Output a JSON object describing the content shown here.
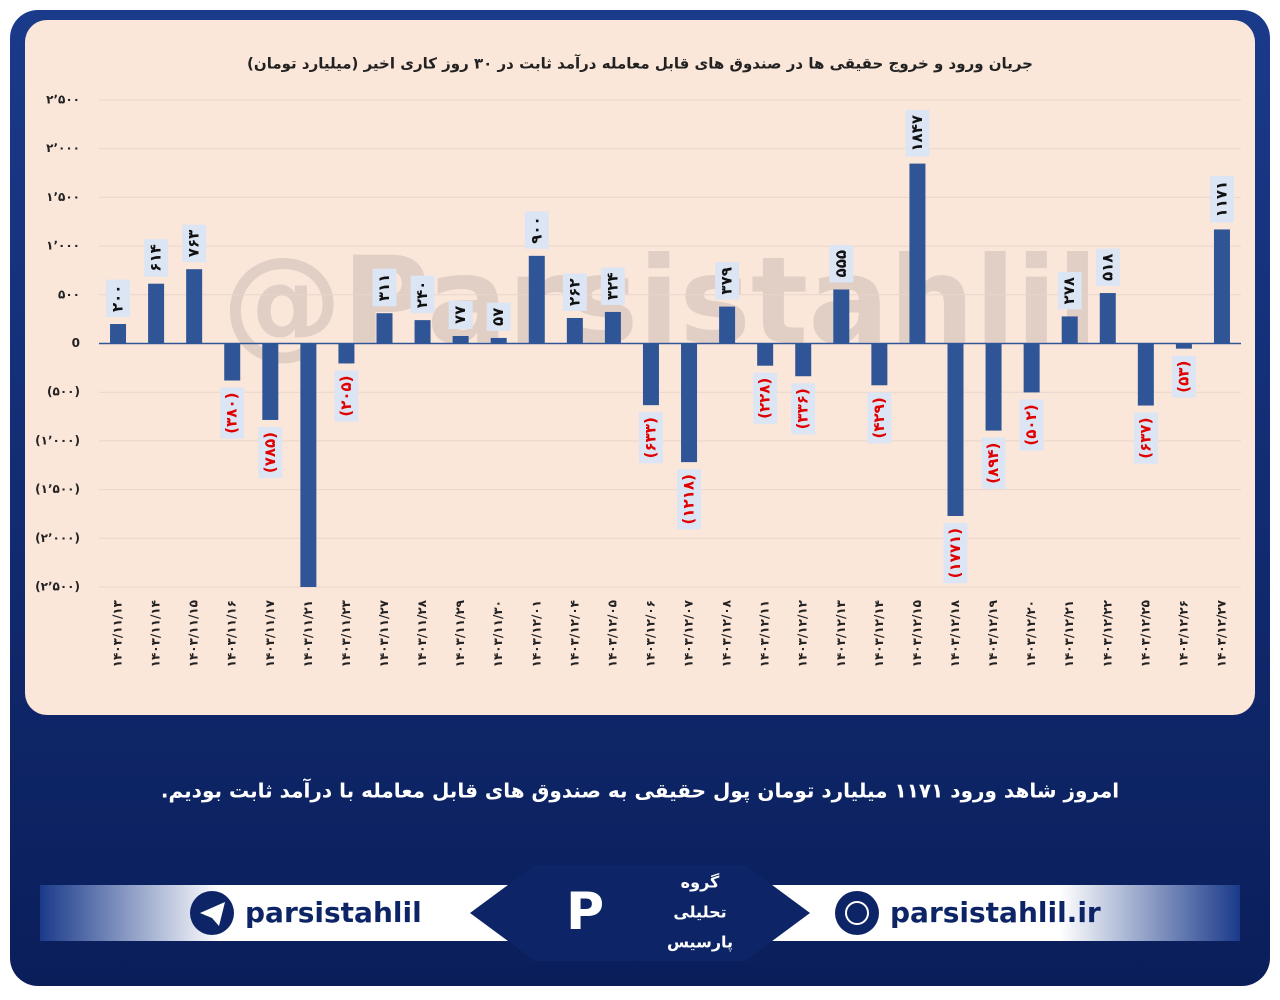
{
  "chart_data": {
    "type": "bar",
    "title": "جریان ورود و خروج حقیقی ها در صندوق های قابل معامله درآمد ثابت در ۳۰ روز کاری اخیر (میلیارد تومان)",
    "watermark": "@Parsistahlil",
    "categories": [
      "۱۴۰۳/۱۱/۱۳",
      "۱۴۰۳/۱۱/۱۴",
      "۱۴۰۳/۱۱/۱۵",
      "۱۴۰۳/۱۱/۱۶",
      "۱۴۰۳/۱۱/۱۷",
      "۱۴۰۳/۱۱/۲۱",
      "۱۴۰۳/۱۱/۲۳",
      "۱۴۰۳/۱۱/۲۷",
      "۱۴۰۳/۱۱/۲۸",
      "۱۴۰۳/۱۱/۲۹",
      "۱۴۰۳/۱۱/۳۰",
      "۱۴۰۳/۱۲/۰۱",
      "۱۴۰۳/۱۲/۰۴",
      "۱۴۰۳/۱۲/۰۵",
      "۱۴۰۳/۱۲/۰۶",
      "۱۴۰۳/۱۲/۰۷",
      "۱۴۰۳/۱۲/۰۸",
      "۱۴۰۳/۱۲/۱۱",
      "۱۴۰۳/۱۲/۱۲",
      "۱۴۰۳/۱۲/۱۳",
      "۱۴۰۳/۱۲/۱۴",
      "۱۴۰۳/۱۲/۱۵",
      "۱۴۰۳/۱۲/۱۸",
      "۱۴۰۳/۱۲/۱۹",
      "۱۴۰۳/۱۲/۲۰",
      "۱۴۰۳/۱۲/۲۱",
      "۱۴۰۳/۱۲/۲۲",
      "۱۴۰۳/۱۲/۲۵",
      "۱۴۰۳/۱۲/۲۶",
      "۱۴۰۳/۱۲/۲۷"
    ],
    "values": [
      200,
      614,
      763,
      -380,
      -785,
      -2500,
      -205,
      311,
      240,
      77,
      57,
      900,
      262,
      324,
      -633,
      -1218,
      379,
      -228,
      -336,
      555,
      -429,
      1847,
      -1771,
      -894,
      -502,
      278,
      518,
      -637,
      -53,
      1171
    ],
    "value_labels": [
      "۲۰۰",
      "۶۱۴",
      "۷۶۳",
      "(۳۸۰)",
      "(۷۸۵)",
      null,
      "(۲۰۵)",
      "۳۱۱",
      "۲۴۰",
      "۷۷",
      "۵۷",
      "۹۰۰",
      "۲۶۲",
      "۳۲۴",
      "(۶۳۳)",
      "(۱۲۱۸)",
      "۳۷۹",
      "(۲۲۸)",
      "(۳۳۶)",
      "۵۵۵",
      "(۴۲۹)",
      "۱۸۴۷",
      "(۱۷۷۱)",
      "(۸۹۴)",
      "(۵۰۲)",
      "۲۷۸",
      "۵۱۸",
      "(۶۳۷)",
      "(۵۳)",
      "۱۱۷۱"
    ],
    "color": "#2f5597",
    "negative_label_color": "#e00000",
    "ylim": [
      -2500,
      2500
    ],
    "yticks": [
      {
        "value": 2500,
        "label": "۲٬۵۰۰"
      },
      {
        "value": 2000,
        "label": "۲٬۰۰۰"
      },
      {
        "value": 1500,
        "label": "۱٬۵۰۰"
      },
      {
        "value": 1000,
        "label": "۱٬۰۰۰"
      },
      {
        "value": 500,
        "label": "۵۰۰"
      },
      0,
      {
        "value": -500,
        "label": "(۵۰۰)"
      },
      {
        "value": -1000,
        "label": "(۱٬۰۰۰)"
      },
      {
        "value": -1500,
        "label": "(۱٬۵۰۰)"
      },
      {
        "value": -2000,
        "label": "(۲٬۰۰۰)"
      },
      {
        "value": -2500,
        "label": "(۲٬۵۰۰)"
      }
    ],
    "grid": true
  },
  "caption": "امروز شاهد ورود ۱۱۷۱ میلیارد تومان پول حقیقی به صندوق های قابل معامله با درآمد ثابت بودیم.",
  "footer": {
    "telegram": "parsistahlil",
    "website": "parsistahlil.ir",
    "logo": [
      "گروه",
      "تحلیلی",
      "پارسیس"
    ]
  }
}
